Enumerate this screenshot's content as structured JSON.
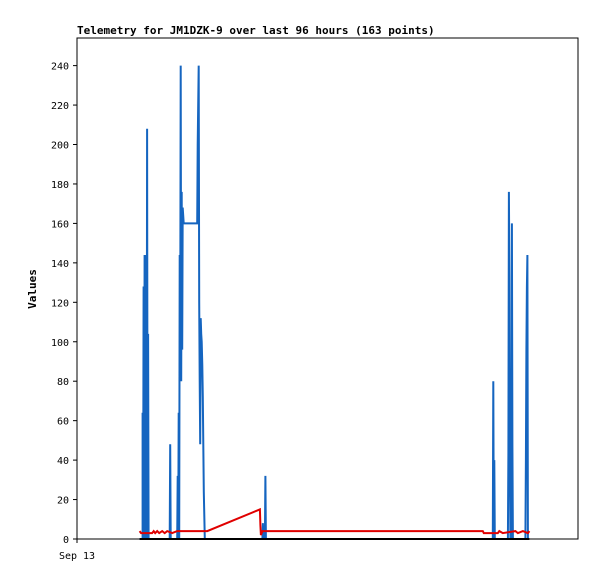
{
  "chart_data": {
    "type": "line",
    "title": "Telemetry for JM1DZK-9 over last 96 hours (163 points)",
    "xlabel": "",
    "ylabel": "Values",
    "ylim": [
      0,
      254
    ],
    "yticks": [
      0,
      20,
      40,
      60,
      80,
      100,
      120,
      140,
      160,
      180,
      200,
      220,
      240
    ],
    "xlim": [
      0,
      100
    ],
    "xticks": [
      {
        "x": 0,
        "label": "Sep 13"
      }
    ],
    "grid": false,
    "legend": "none",
    "series": [
      {
        "color": "#1565c0",
        "points": [
          [
            12.5,
            0
          ],
          [
            13.1,
            0
          ],
          [
            13.1,
            64
          ],
          [
            13.2,
            0
          ],
          [
            13.3,
            128
          ],
          [
            13.4,
            0
          ],
          [
            13.5,
            144
          ],
          [
            13.6,
            0
          ],
          [
            13.7,
            72
          ],
          [
            13.8,
            0
          ],
          [
            13.8,
            144
          ],
          [
            13.9,
            0
          ],
          [
            14.0,
            208
          ],
          [
            14.1,
            0
          ],
          [
            14.2,
            104
          ],
          [
            14.3,
            0
          ],
          [
            18.5,
            0
          ],
          [
            18.6,
            48
          ],
          [
            18.7,
            0
          ],
          [
            20.0,
            0
          ],
          [
            20.1,
            32
          ],
          [
            20.2,
            0
          ],
          [
            20.3,
            64
          ],
          [
            20.4,
            0
          ],
          [
            20.5,
            144
          ],
          [
            20.6,
            96
          ],
          [
            20.7,
            240
          ],
          [
            20.8,
            80
          ],
          [
            20.9,
            176
          ],
          [
            21.0,
            96
          ],
          [
            21.1,
            168
          ],
          [
            21.3,
            160
          ],
          [
            24.0,
            160
          ],
          [
            24.1,
            200
          ],
          [
            24.2,
            220
          ],
          [
            24.3,
            240
          ],
          [
            24.4,
            120
          ],
          [
            24.5,
            80
          ],
          [
            24.6,
            48
          ],
          [
            24.7,
            112
          ],
          [
            24.8,
            104
          ],
          [
            24.9,
            100
          ],
          [
            25.0,
            88
          ],
          [
            25.1,
            72
          ],
          [
            25.3,
            24
          ],
          [
            25.5,
            0
          ],
          [
            37.0,
            0
          ],
          [
            37.1,
            8
          ],
          [
            37.2,
            0
          ],
          [
            37.5,
            0
          ],
          [
            37.6,
            32
          ],
          [
            37.7,
            0
          ],
          [
            83.0,
            0
          ],
          [
            83.1,
            80
          ],
          [
            83.2,
            0
          ],
          [
            83.3,
            40
          ],
          [
            83.4,
            0
          ],
          [
            86.0,
            0
          ],
          [
            86.1,
            44
          ],
          [
            86.2,
            176
          ],
          [
            86.3,
            132
          ],
          [
            86.4,
            44
          ],
          [
            86.5,
            0
          ],
          [
            86.6,
            80
          ],
          [
            86.7,
            0
          ],
          [
            86.8,
            160
          ],
          [
            86.9,
            48
          ],
          [
            87.0,
            0
          ],
          [
            89.5,
            0
          ],
          [
            89.6,
            40
          ],
          [
            89.7,
            96
          ],
          [
            89.8,
            128
          ],
          [
            89.9,
            144
          ],
          [
            90.0,
            0
          ]
        ]
      },
      {
        "color": "#e00000",
        "points": [
          [
            12.5,
            4
          ],
          [
            12.8,
            3
          ],
          [
            15.0,
            3
          ],
          [
            15.3,
            4
          ],
          [
            15.6,
            3
          ],
          [
            16.0,
            4
          ],
          [
            16.4,
            3
          ],
          [
            17.0,
            4
          ],
          [
            17.5,
            3
          ],
          [
            18.0,
            4
          ],
          [
            19.0,
            3
          ],
          [
            20.0,
            4
          ],
          [
            26.0,
            4
          ],
          [
            36.5,
            15
          ],
          [
            36.6,
            7
          ],
          [
            36.7,
            2
          ],
          [
            37.0,
            4
          ],
          [
            81.0,
            4
          ],
          [
            81.2,
            3
          ],
          [
            84.0,
            3
          ],
          [
            84.3,
            4
          ],
          [
            85.0,
            3
          ],
          [
            87.5,
            4
          ],
          [
            88.0,
            3
          ],
          [
            89.0,
            4
          ],
          [
            90.0,
            3
          ],
          [
            90.3,
            4
          ]
        ]
      },
      {
        "color": "#000000",
        "points": [
          [
            12.5,
            0
          ],
          [
            90.3,
            0
          ]
        ]
      }
    ]
  }
}
